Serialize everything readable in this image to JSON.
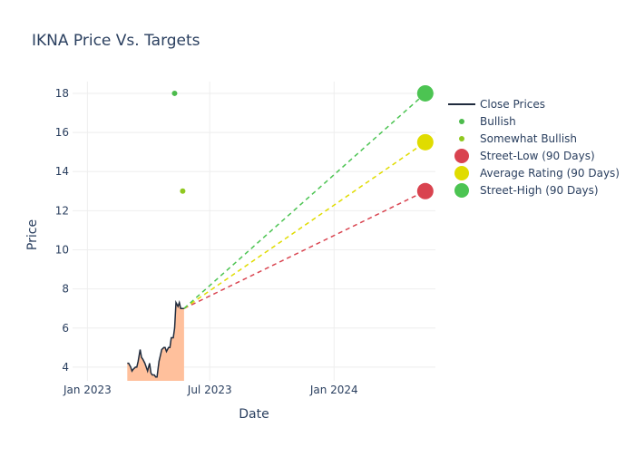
{
  "chart_data": {
    "type": "line",
    "title": "IKNA Price Vs. Targets",
    "xlabel": "Date",
    "ylabel": "Price",
    "x_range": [
      "2022-12-10",
      "2024-05-30"
    ],
    "y_range": [
      3.3,
      18.6
    ],
    "x_ticks": [
      {
        "date": "2023-01-01",
        "label": "Jan 2023"
      },
      {
        "date": "2023-07-01",
        "label": "Jul 2023"
      },
      {
        "date": "2024-01-01",
        "label": "Jan 2024"
      }
    ],
    "y_ticks": [
      4,
      6,
      8,
      10,
      12,
      14,
      16,
      18
    ],
    "grid": true,
    "legend_position": "right",
    "legend": [
      {
        "label": "Close Prices",
        "kind": "line",
        "color": "#1f2b3d"
      },
      {
        "label": "Bullish",
        "kind": "dot-small",
        "color": "#4cbb4c"
      },
      {
        "label": "Somewhat Bullish",
        "kind": "dot-small",
        "color": "#90c820"
      },
      {
        "label": "Street-Low (90 Days)",
        "kind": "dot-large",
        "color": "#d9434f"
      },
      {
        "label": "Average Rating (90 Days)",
        "kind": "dot-large",
        "color": "#e0dc00"
      },
      {
        "label": "Street-High (90 Days)",
        "kind": "dot-large",
        "color": "#4cc452"
      }
    ],
    "close_prices": [
      [
        "2023-03-01",
        4.2
      ],
      [
        "2023-03-03",
        4.2
      ],
      [
        "2023-03-06",
        4.0
      ],
      [
        "2023-03-08",
        3.8
      ],
      [
        "2023-03-10",
        3.9
      ],
      [
        "2023-03-13",
        4.0
      ],
      [
        "2023-03-15",
        4.0
      ],
      [
        "2023-03-17",
        4.3
      ],
      [
        "2023-03-20",
        4.9
      ],
      [
        "2023-03-22",
        4.5
      ],
      [
        "2023-03-24",
        4.4
      ],
      [
        "2023-03-27",
        4.2
      ],
      [
        "2023-03-29",
        4.0
      ],
      [
        "2023-03-31",
        3.8
      ],
      [
        "2023-04-03",
        4.2
      ],
      [
        "2023-04-05",
        3.7
      ],
      [
        "2023-04-07",
        3.6
      ],
      [
        "2023-04-10",
        3.6
      ],
      [
        "2023-04-12",
        3.5
      ],
      [
        "2023-04-14",
        3.5
      ],
      [
        "2023-04-17",
        4.3
      ],
      [
        "2023-04-19",
        4.6
      ],
      [
        "2023-04-21",
        4.9
      ],
      [
        "2023-04-24",
        5.0
      ],
      [
        "2023-04-26",
        5.0
      ],
      [
        "2023-04-28",
        4.8
      ],
      [
        "2023-05-01",
        5.0
      ],
      [
        "2023-05-03",
        5.0
      ],
      [
        "2023-05-05",
        5.5
      ],
      [
        "2023-05-08",
        5.5
      ],
      [
        "2023-05-10",
        6.0
      ],
      [
        "2023-05-12",
        7.3
      ],
      [
        "2023-05-15",
        7.1
      ],
      [
        "2023-05-17",
        7.3
      ],
      [
        "2023-05-19",
        7.0
      ],
      [
        "2023-05-22",
        7.0
      ],
      [
        "2023-05-24",
        7.0
      ]
    ],
    "analyst_ratings": [
      {
        "date": "2023-05-10",
        "value": 18,
        "rating": "Bullish"
      },
      {
        "date": "2023-05-22",
        "value": 13,
        "rating": "Somewhat Bullish"
      }
    ],
    "projection_start": {
      "date": "2023-05-24",
      "value": 7.0
    },
    "targets": [
      {
        "name": "Street-Low (90 Days)",
        "date": "2024-05-15",
        "value": 13.0
      },
      {
        "name": "Average Rating (90 Days)",
        "date": "2024-05-15",
        "value": 15.5
      },
      {
        "name": "Street-High (90 Days)",
        "date": "2024-05-15",
        "value": 18.0
      }
    ],
    "colors": {
      "close_line": "#1f2b3d",
      "close_fill": "#ffc09c",
      "bullish": "#4cbb4c",
      "somewhat_bullish": "#90c820",
      "street_low": "#d9434f",
      "average": "#e0dc00",
      "street_high": "#4cc452",
      "grid": "#eeeeee",
      "text": "#2a3f5f"
    }
  }
}
